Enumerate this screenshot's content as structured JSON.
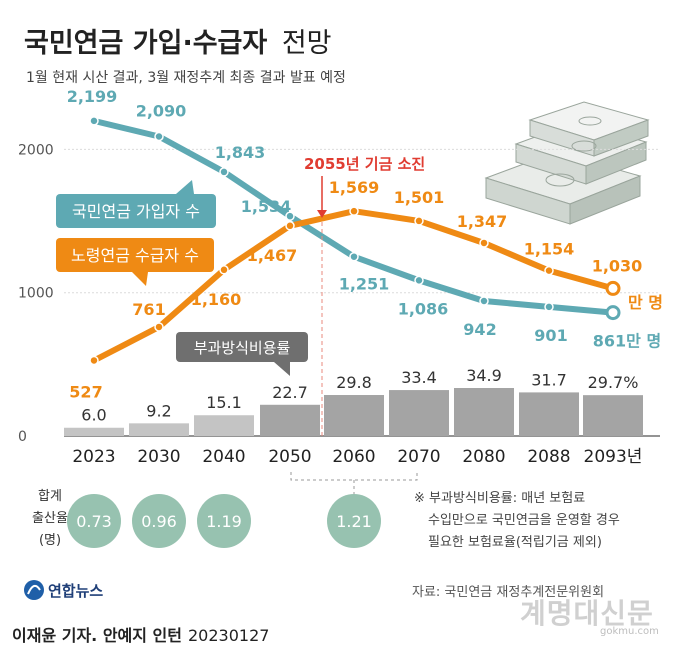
{
  "header": {
    "title_main": "국민연금 가입·수급자",
    "title_suffix": "전망",
    "subtitle": "1월 현재 시산 결과, 3월 재정추계 최종 결과 발표 예정"
  },
  "chart_data": {
    "type": "line+bar",
    "categories": [
      "2023",
      "2030",
      "2040",
      "2050",
      "2060",
      "2070",
      "2080",
      "2088",
      "2093년"
    ],
    "ylim": [
      0,
      2300
    ],
    "yticks": [
      "0",
      "1000",
      "2000"
    ],
    "series": [
      {
        "name": "국민연금 가입자 수",
        "color": "#5ea9b3",
        "values": [
          2199,
          2090,
          1843,
          1534,
          1251,
          1086,
          942,
          901,
          861
        ],
        "labels": [
          "2,199",
          "2,090",
          "1,843",
          "1,534",
          "1,251",
          "1,086",
          "942",
          "901",
          "861만 명"
        ]
      },
      {
        "name": "노령연금 수급자 수",
        "color": "#ef8a14",
        "values": [
          527,
          761,
          1160,
          1467,
          1569,
          1501,
          1347,
          1154,
          1030
        ],
        "labels": [
          "527",
          "761",
          "1,160",
          "1,467",
          "1,569",
          "1,501",
          "1,347",
          "1,154",
          "1,030"
        ],
        "end_unit": "만 명"
      }
    ],
    "bars": {
      "name": "부과방식비용률",
      "values": [
        6.0,
        9.2,
        15.1,
        22.7,
        29.8,
        33.4,
        34.9,
        31.7,
        29.7
      ],
      "labels": [
        "6.0",
        "9.2",
        "15.1",
        "22.7",
        "29.8",
        "33.4",
        "34.9",
        "31.7",
        "29.7%"
      ],
      "max": 34.9
    },
    "annotation": "2055년 기금 소진",
    "fertility": {
      "label_lines": [
        "합계",
        "출산율",
        "(명)"
      ],
      "values": [
        {
          "category": "2023",
          "value": "0.73"
        },
        {
          "category": "2030",
          "value": "0.96"
        },
        {
          "category": "2040",
          "value": "1.19"
        },
        {
          "category": "2060~2070",
          "value": "1.21"
        }
      ]
    },
    "note_lines": [
      "※ 부과방식비용률: 매년 보험료",
      "수입만으로 국민연금을 운영할 경우",
      "필요한 보험료율(적립기금 제외)"
    ]
  },
  "source": "자료: 국민연금 재정추계전문위원회",
  "logo_text": "연합뉴스",
  "credit": "이재윤 기자. 안예지 인턴",
  "date": "20230127",
  "watermark": "계명대신문",
  "watermark_sub": "gokmu.com",
  "colors": {
    "subscribers": "#5ea9b3",
    "recipients": "#ef8a14",
    "bar_light": "#c4c4c4",
    "bar_dark": "#a4a4a4",
    "annotation": "#e03c31",
    "circle": "#97c2b0",
    "dark_label": "#6f6f6f"
  }
}
